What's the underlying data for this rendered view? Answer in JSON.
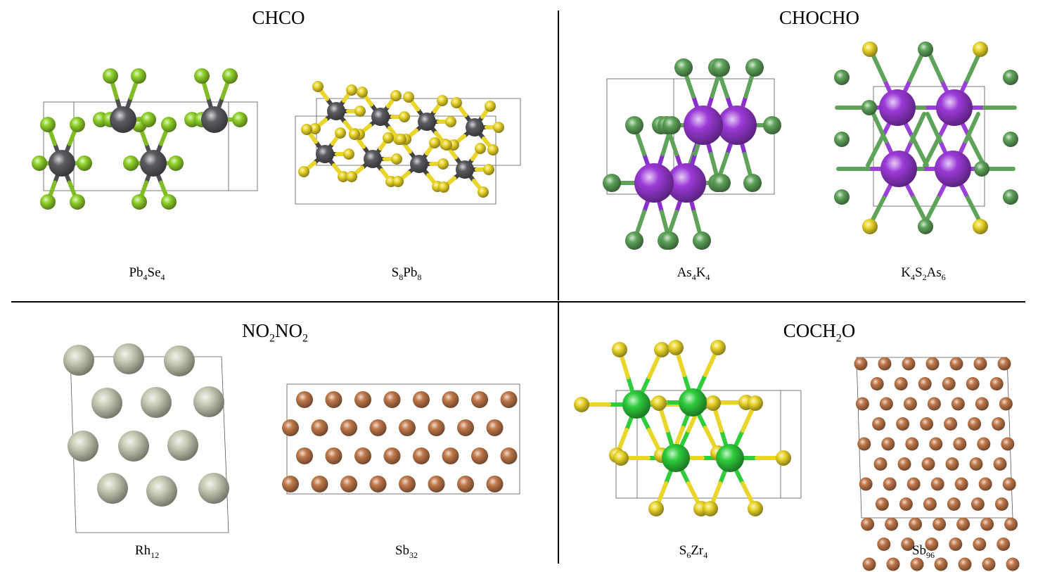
{
  "colors": {
    "pb": "#5a5c60",
    "se": "#8fd12a",
    "s": "#ead52a",
    "as": "#9b3ad8",
    "k": "#5fa35a",
    "rh": "#c9cbb6",
    "sb": "#c0784a",
    "zr": "#2fcc3c"
  },
  "panels": [
    {
      "title_parts": [
        {
          "t": "CHCO"
        }
      ],
      "structures": [
        {
          "formula_parts": [
            {
              "t": "Pb"
            },
            {
              "s": "4"
            },
            {
              "t": "Se"
            },
            {
              "s": "4"
            }
          ],
          "elements": [
            "Pb",
            "Se"
          ]
        },
        {
          "formula_parts": [
            {
              "t": "S"
            },
            {
              "s": "8"
            },
            {
              "t": "Pb"
            },
            {
              "s": "8"
            }
          ],
          "elements": [
            "S",
            "Pb"
          ]
        }
      ]
    },
    {
      "title_parts": [
        {
          "t": "CHOCHO"
        }
      ],
      "structures": [
        {
          "formula_parts": [
            {
              "t": "As"
            },
            {
              "s": "4"
            },
            {
              "t": "K"
            },
            {
              "s": "4"
            }
          ],
          "elements": [
            "As",
            "K"
          ]
        },
        {
          "formula_parts": [
            {
              "t": "K"
            },
            {
              "s": "4"
            },
            {
              "t": "S"
            },
            {
              "s": "2"
            },
            {
              "t": "As"
            },
            {
              "s": "6"
            }
          ],
          "elements": [
            "K",
            "S",
            "As"
          ]
        }
      ]
    },
    {
      "title_parts": [
        {
          "t": "NO"
        },
        {
          "s": "2"
        },
        {
          "t": "NO"
        },
        {
          "s": "2"
        }
      ],
      "structures": [
        {
          "formula_parts": [
            {
              "t": "Rh"
            },
            {
              "s": "12"
            }
          ],
          "elements": [
            "Rh"
          ]
        },
        {
          "formula_parts": [
            {
              "t": "Sb"
            },
            {
              "s": "32"
            }
          ],
          "elements": [
            "Sb"
          ]
        }
      ]
    },
    {
      "title_parts": [
        {
          "t": "COCH"
        },
        {
          "s": "2"
        },
        {
          "t": "O"
        }
      ],
      "structures": [
        {
          "formula_parts": [
            {
              "t": "S"
            },
            {
              "s": "6"
            },
            {
              "t": "Zr"
            },
            {
              "s": "4"
            }
          ],
          "elements": [
            "S",
            "Zr"
          ]
        },
        {
          "formula_parts": [
            {
              "t": "Sb"
            },
            {
              "s": "96"
            }
          ],
          "elements": [
            "Sb"
          ]
        }
      ]
    }
  ]
}
